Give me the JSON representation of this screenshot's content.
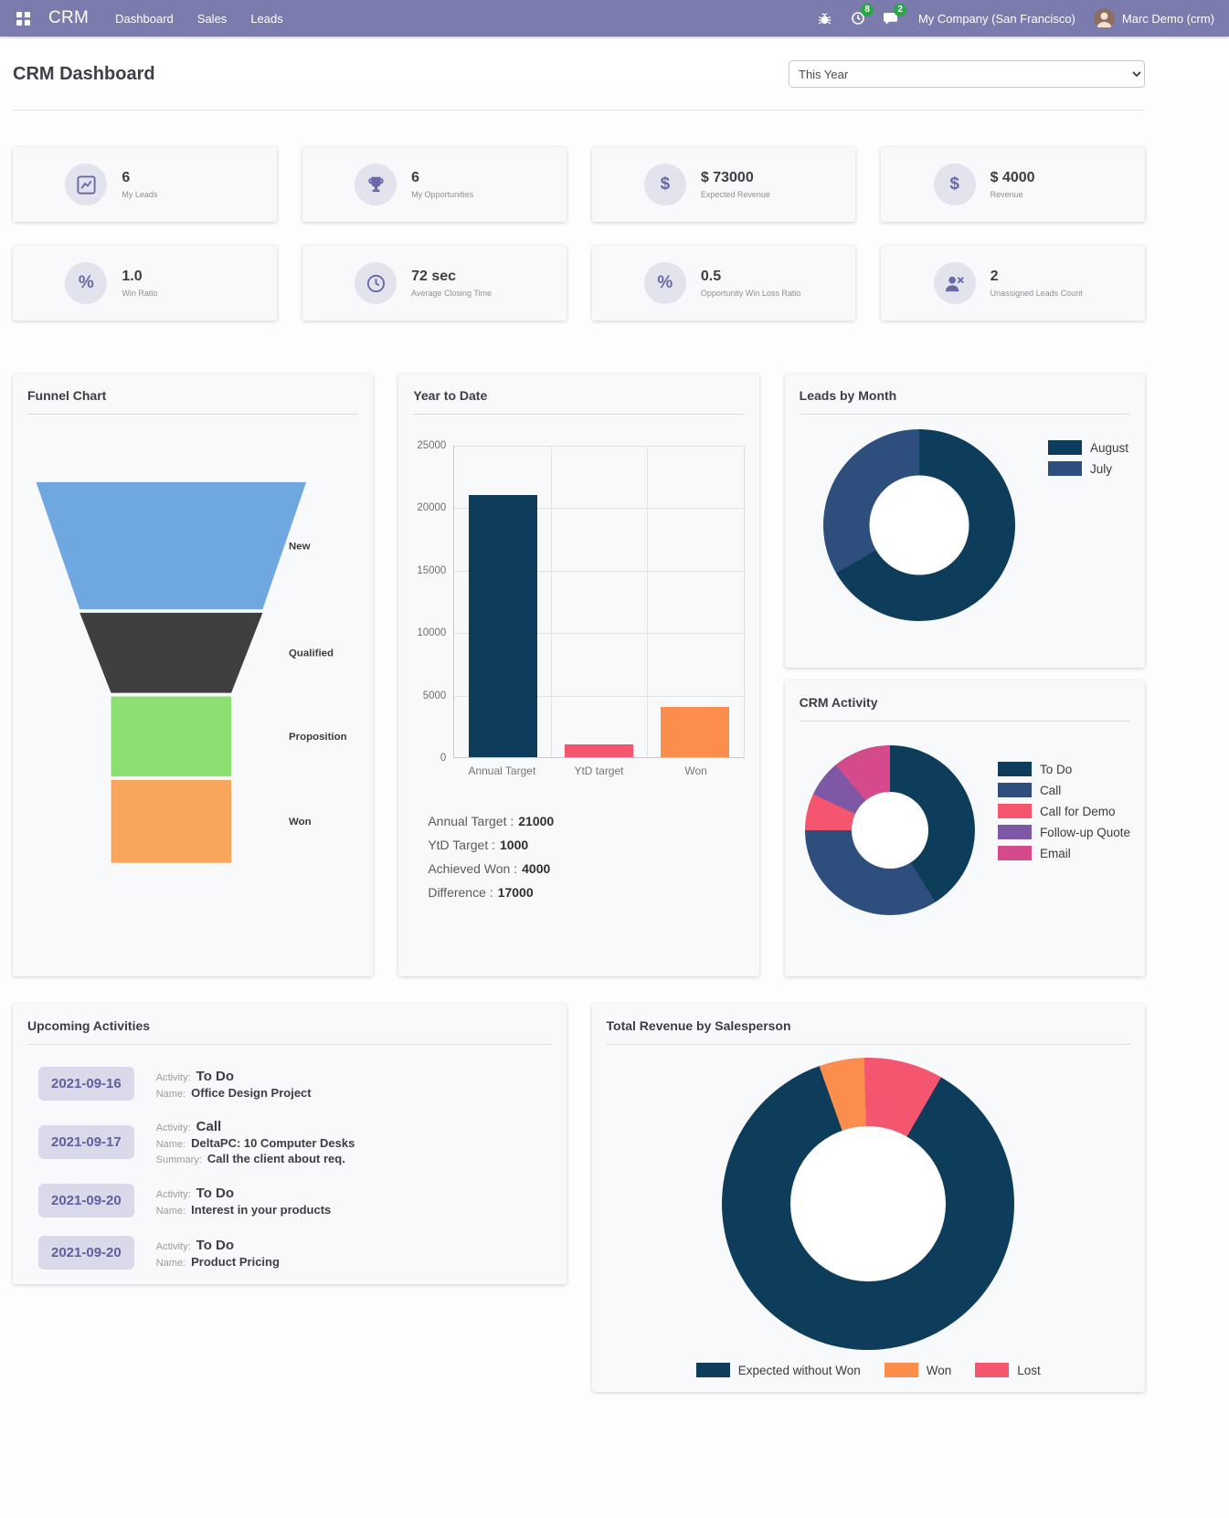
{
  "theme": {
    "navbar_bg": "#7c7bad",
    "badge_green": "#28a745",
    "panel_bg": "#f8f9fb",
    "kpi_icon_bg": "#e3e3ee",
    "kpi_icon_color": "#6a69a5",
    "date_badge_bg": "#d9d9ea",
    "date_badge_color": "#605f9e"
  },
  "navbar": {
    "app_title": "CRM",
    "menu": [
      {
        "label": "Dashboard"
      },
      {
        "label": "Sales"
      },
      {
        "label": "Leads"
      }
    ],
    "activity_badge": "8",
    "message_badge": "2",
    "company": "My Company (San Francisco)",
    "user": "Marc Demo (crm)"
  },
  "header": {
    "title": "CRM Dashboard",
    "period_options": [
      "This Year"
    ],
    "period_selected": "This Year"
  },
  "kpis": [
    {
      "value": "6",
      "label": "My Leads",
      "icon": "line-chart-icon"
    },
    {
      "value": "6",
      "label": "My Opportunities",
      "icon": "trophy-icon"
    },
    {
      "value": "$ 73000",
      "label": "Expected Revenue",
      "icon": "dollar-icon"
    },
    {
      "value": "$ 4000",
      "label": "Revenue",
      "icon": "dollar-icon"
    },
    {
      "value": "1.0",
      "label": "Win Ratio",
      "icon": "percent-icon"
    },
    {
      "value": "72 sec",
      "label": "Average Closing Time",
      "icon": "clock-icon"
    },
    {
      "value": "0.5",
      "label": "Opportunity Win Loss Ratio",
      "icon": "percent-icon"
    },
    {
      "value": "2",
      "label": "Unassigned Leads Count",
      "icon": "user-x-icon"
    }
  ],
  "chart_data": [
    {
      "id": "funnel",
      "type": "funnel",
      "title": "Funnel Chart",
      "stages": [
        {
          "label": "New",
          "color": "#6fa8e0",
          "top_width_pct": 100,
          "bottom_width_pct": 67.7,
          "height": 146
        },
        {
          "label": "Qualified",
          "color": "#3f3f3f",
          "top_width_pct": 67.7,
          "bottom_width_pct": 44.5,
          "height": 92
        },
        {
          "label": "Proposition",
          "color": "#8cdf70",
          "top_width_pct": 44.5,
          "bottom_width_pct": 44.5,
          "height": 92
        },
        {
          "label": "Won",
          "color": "#f8a55e",
          "top_width_pct": 44.5,
          "bottom_width_pct": 44.5,
          "height": 95
        }
      ]
    },
    {
      "id": "year_to_date",
      "type": "bar",
      "title": "Year to Date",
      "categories": [
        "Annual Target",
        "YtD target",
        "Won"
      ],
      "values": [
        21000,
        1000,
        4000
      ],
      "colors": [
        "#0e3d5c",
        "#f4566f",
        "#fb8d4d"
      ],
      "ylim": [
        0,
        25000
      ],
      "ytick_step": 5000,
      "grid": true,
      "legend_position": "none",
      "stats": [
        {
          "label": "Annual Target :",
          "value": "21000"
        },
        {
          "label": "YtD Target :",
          "value": "1000"
        },
        {
          "label": "Achieved Won :",
          "value": "4000"
        },
        {
          "label": "Difference :",
          "value": "17000"
        }
      ]
    },
    {
      "id": "leads_by_month",
      "type": "donut",
      "title": "Leads by Month",
      "legend_position": "top-right",
      "start_angle": 0,
      "slices": [
        {
          "label": "August",
          "value": 4,
          "color": "#0e3d5c"
        },
        {
          "label": "July",
          "value": 2,
          "color": "#2e4f7e"
        }
      ]
    },
    {
      "id": "crm_activity",
      "type": "donut",
      "title": "CRM Activity",
      "legend_position": "right",
      "start_angle": 0,
      "slices": [
        {
          "label": "To Do",
          "value": 41,
          "color": "#0e3d5c"
        },
        {
          "label": "Call",
          "value": 34,
          "color": "#2e4f7e"
        },
        {
          "label": "Call for Demo",
          "value": 7,
          "color": "#f4566f"
        },
        {
          "label": "Follow-up Quote",
          "value": 7,
          "color": "#7e57a5"
        },
        {
          "label": "Email",
          "value": 11,
          "color": "#d44a8a"
        }
      ]
    },
    {
      "id": "total_revenue_by_salesperson",
      "type": "donut",
      "title": "Total Revenue by Salesperson",
      "legend_position": "bottom",
      "start_angle": 30,
      "slices": [
        {
          "label": "Expected without Won",
          "value": 69000,
          "color": "#0e3d5c"
        },
        {
          "label": "Won",
          "value": 4000,
          "color": "#fb8d4d"
        },
        {
          "label": "Lost",
          "value": 7000,
          "color": "#f4566f"
        }
      ]
    }
  ],
  "activities": {
    "title": "Upcoming Activities",
    "field_labels": {
      "activity": "Activity:",
      "name": "Name:",
      "summary": "Summary:"
    },
    "items": [
      {
        "date": "2021-09-16",
        "activity": "To Do",
        "name": "Office Design Project"
      },
      {
        "date": "2021-09-17",
        "activity": "Call",
        "name": "DeltaPC: 10 Computer Desks",
        "summary": "Call the client about req."
      },
      {
        "date": "2021-09-20",
        "activity": "To Do",
        "name": "Interest in your products"
      },
      {
        "date": "2021-09-20",
        "activity": "To Do",
        "name": "Product Pricing"
      }
    ]
  }
}
